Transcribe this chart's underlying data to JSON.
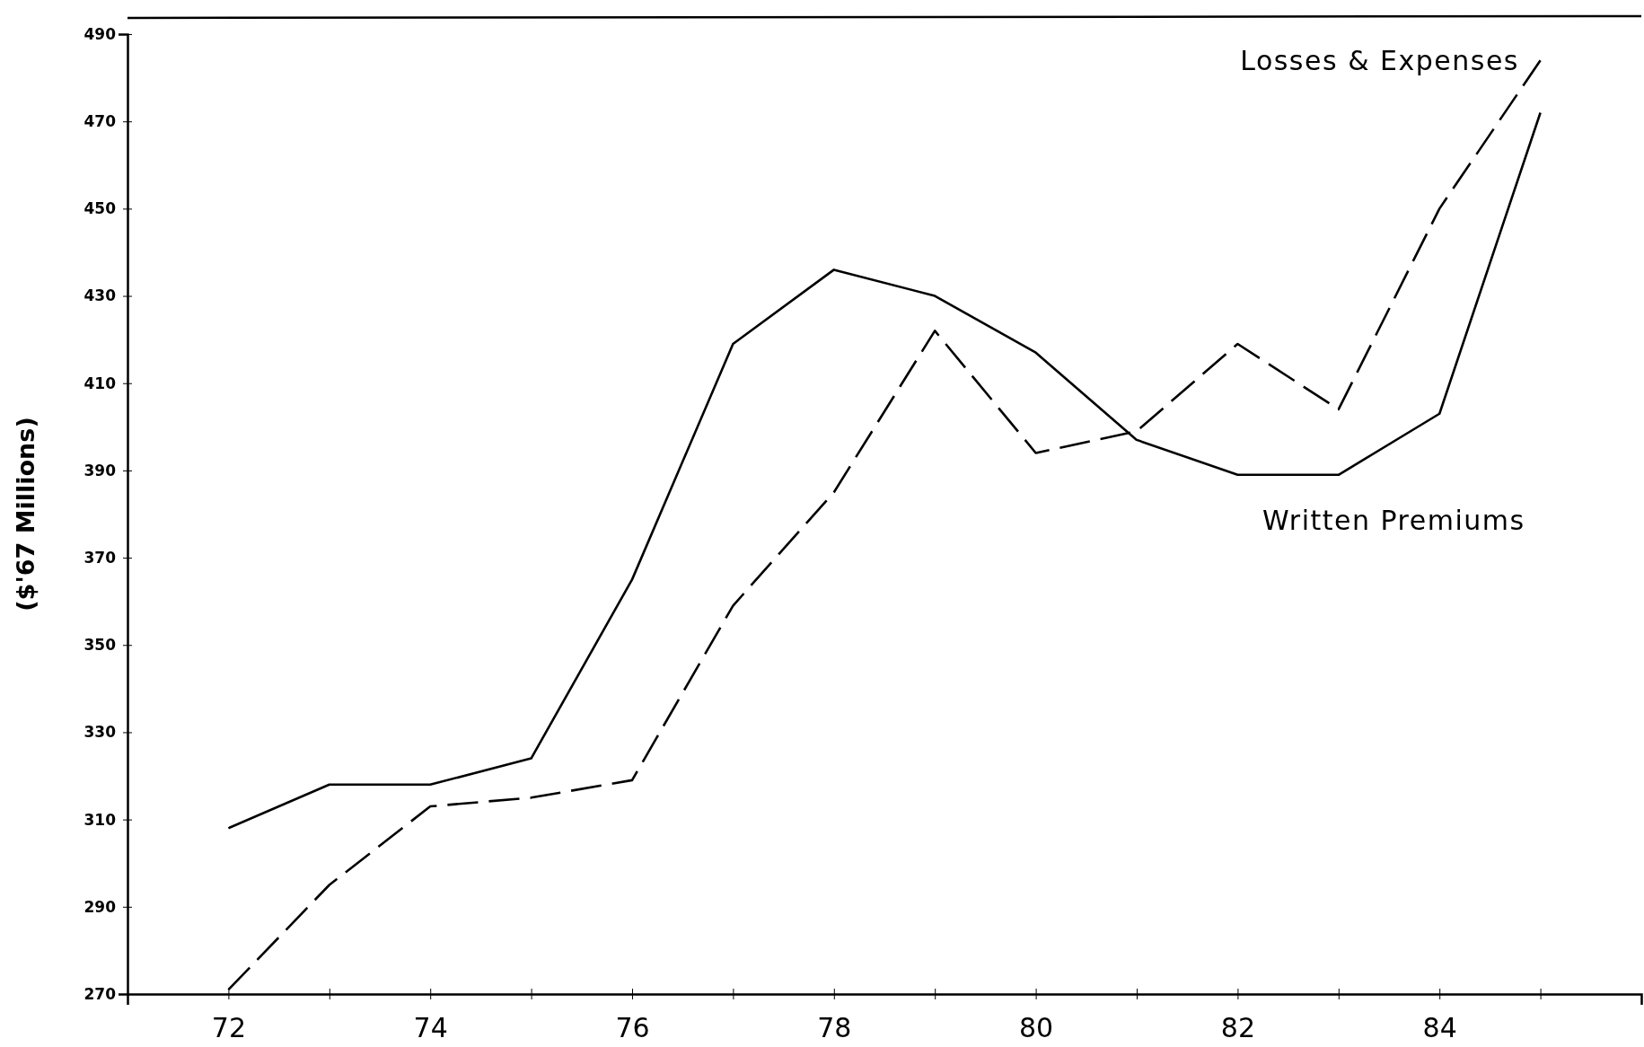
{
  "chart_data": {
    "type": "line",
    "ylabel": "($'67 Millions)",
    "x": [
      72,
      73,
      74,
      75,
      76,
      77,
      78,
      79,
      80,
      81,
      82,
      83,
      84,
      85
    ],
    "xlim": [
      71,
      86
    ],
    "xticks": [
      72,
      {
        "value": 73,
        "label": null
      },
      74,
      {
        "value": 75,
        "label": null
      },
      76,
      {
        "value": 77,
        "label": null
      },
      78,
      {
        "value": 79,
        "label": null
      },
      80,
      {
        "value": 81,
        "label": null
      },
      82,
      {
        "value": 83,
        "label": null
      },
      84,
      {
        "value": 85,
        "label": null
      }
    ],
    "ylim": [
      270,
      490
    ],
    "yticks": [
      270,
      290,
      310,
      330,
      350,
      370,
      390,
      410,
      430,
      450,
      470,
      490
    ],
    "grid": false,
    "legend": false,
    "marker": "none",
    "series": [
      {
        "name": "Written Premiums",
        "color": "#000000",
        "line_style": "solid",
        "values": [
          308,
          318,
          318,
          324,
          365,
          419,
          436,
          430,
          417,
          397,
          389,
          389,
          403,
          472
        ]
      },
      {
        "name": "Losses & Expenses",
        "color": "#000000",
        "line_style": "dashed",
        "values": [
          271,
          295,
          313,
          315,
          319,
          359,
          385,
          422,
          394,
          399,
          419,
          404,
          450,
          484
        ]
      }
    ]
  }
}
